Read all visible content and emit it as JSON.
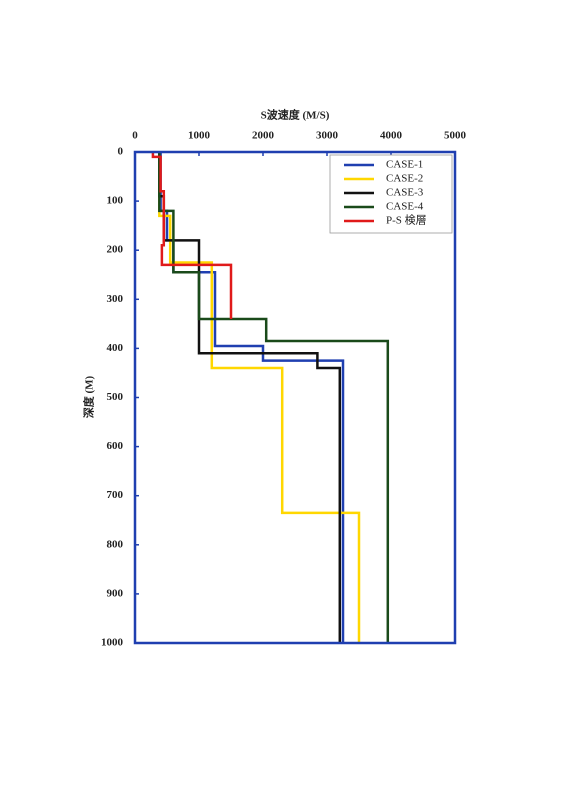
{
  "chart_data": {
    "type": "line",
    "x_label": "S波速度 (M/S)",
    "y_label": "深度 (M)",
    "xlim": [
      0,
      5000
    ],
    "xticks": [
      0,
      1000,
      2000,
      3000,
      4000,
      5000
    ],
    "ylim": [
      0,
      1000
    ],
    "yticks": [
      0,
      100,
      200,
      300,
      400,
      500,
      600,
      700,
      800,
      900,
      1000
    ],
    "y_inverted": true,
    "x_axis_position": "top",
    "legend": "upper right",
    "series": [
      {
        "name": "CASE-1",
        "color": "#1f3fb0",
        "x": [
          400,
          400,
          500,
          500,
          600,
          600,
          1250,
          1250,
          2000,
          2000,
          3250,
          3250
        ],
        "values": [
          0,
          120,
          120,
          180,
          180,
          245,
          245,
          395,
          395,
          425,
          425,
          1000
        ]
      },
      {
        "name": "CASE-2",
        "color": "#ffd700",
        "x": [
          380,
          380,
          550,
          550,
          1200,
          1200,
          2300,
          2300,
          3500,
          3500
        ],
        "values": [
          0,
          130,
          130,
          225,
          225,
          440,
          440,
          735,
          735,
          1000
        ]
      },
      {
        "name": "CASE-3",
        "color": "#111111",
        "x": [
          380,
          380,
          450,
          450,
          1000,
          1000,
          2850,
          2850,
          3200,
          3200
        ],
        "values": [
          0,
          90,
          90,
          180,
          180,
          410,
          410,
          440,
          440,
          1000
        ]
      },
      {
        "name": "CASE-4",
        "color": "#1a4a1a",
        "x": [
          380,
          380,
          600,
          600,
          1000,
          1000,
          2050,
          2050,
          3950,
          3950
        ],
        "values": [
          0,
          120,
          120,
          245,
          245,
          340,
          340,
          385,
          385,
          1000
        ]
      },
      {
        "name": "P-S 検層",
        "color": "#e01a1a",
        "x": [
          280,
          280,
          400,
          400,
          450,
          450,
          420,
          420,
          1500,
          1500
        ],
        "values": [
          0,
          10,
          10,
          80,
          80,
          190,
          190,
          230,
          230,
          340
        ]
      }
    ]
  }
}
